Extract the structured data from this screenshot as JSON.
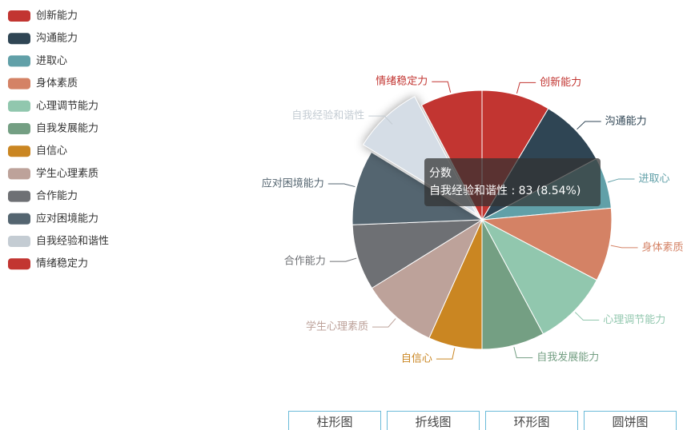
{
  "chart_data": {
    "type": "pie",
    "categories": [
      "创新能力",
      "沟通能力",
      "进取心",
      "身体素质",
      "心理调节能力",
      "自我发展能力",
      "自信心",
      "学生心理素质",
      "合作能力",
      "应对困境能力",
      "自我经验和谐性",
      "情绪稳定力"
    ],
    "values": [
      83,
      84,
      62,
      89,
      92,
      76,
      65,
      92,
      80,
      91,
      83,
      75
    ],
    "colors": [
      "#c23531",
      "#2f4554",
      "#61a0a8",
      "#d48265",
      "#91c7ae",
      "#749f83",
      "#ca8622",
      "#bda29a",
      "#6e7074",
      "#546570",
      "#c4ccd3",
      "#c23531"
    ],
    "legend": "left",
    "tooltip": {
      "title": "分数",
      "text": "自我经验和谐性 : 83 (8.54%)"
    }
  },
  "buttons": [
    "柱形图",
    "折线图",
    "环形图",
    "圆饼图"
  ]
}
